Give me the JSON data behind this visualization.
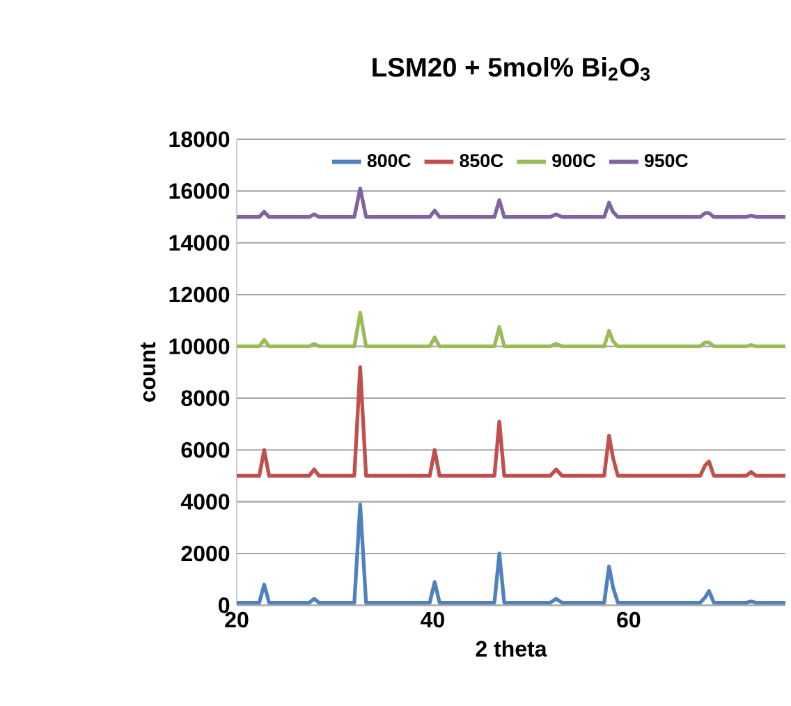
{
  "chart_data": {
    "type": "line",
    "title": "LSM20 + 5mol% Bi$_{2}$O$_{3}$",
    "xlabel": "2 theta",
    "ylabel": "count",
    "x": [
      20,
      22.3,
      22.8,
      23.3,
      27.4,
      27.9,
      28.4,
      32.0,
      32.6,
      33.2,
      39.7,
      40.2,
      40.7,
      46.3,
      46.8,
      47.3,
      52.0,
      52.6,
      53.2,
      57.5,
      58.0,
      58.4,
      58.9,
      67.3,
      67.8,
      68.2,
      68.7,
      72.0,
      72.5,
      73.0,
      76
    ],
    "series": [
      {
        "name": "800C",
        "color": "#4f81bd",
        "values": [
          100,
          100,
          800,
          100,
          100,
          250,
          100,
          100,
          3900,
          100,
          100,
          900,
          100,
          100,
          2000,
          100,
          100,
          250,
          100,
          100,
          1500,
          700,
          100,
          100,
          300,
          550,
          100,
          100,
          150,
          100,
          100
        ]
      },
      {
        "name": "850C",
        "color": "#c0504d",
        "values": [
          5000,
          5000,
          6000,
          5000,
          5000,
          5250,
          5000,
          5000,
          9200,
          5000,
          5000,
          6000,
          5000,
          5000,
          7100,
          5000,
          5000,
          5250,
          5000,
          5000,
          6550,
          5700,
          5000,
          5000,
          5400,
          5550,
          5000,
          5000,
          5150,
          5000,
          5000
        ]
      },
      {
        "name": "900C",
        "color": "#9bbb59",
        "values": [
          10000,
          10000,
          10250,
          10000,
          10000,
          10100,
          10000,
          10000,
          11300,
          10000,
          10000,
          10350,
          10000,
          10000,
          10750,
          10000,
          10000,
          10100,
          10000,
          10000,
          10600,
          10200,
          10000,
          10000,
          10150,
          10150,
          10000,
          10000,
          10050,
          10000,
          10000
        ]
      },
      {
        "name": "950C",
        "color": "#8064a2",
        "values": [
          15000,
          15000,
          15200,
          15000,
          15000,
          15100,
          15000,
          15000,
          16100,
          15000,
          15000,
          15250,
          15000,
          15000,
          15650,
          15000,
          15000,
          15100,
          15000,
          15000,
          15550,
          15200,
          15000,
          15000,
          15150,
          15150,
          15000,
          15000,
          15050,
          15000,
          15000
        ]
      }
    ],
    "xlim": [
      20,
      76
    ],
    "xticks": [
      20,
      40,
      60
    ],
    "ylim": [
      0,
      18000
    ],
    "yticks": [
      0,
      2000,
      4000,
      6000,
      8000,
      10000,
      12000,
      14000,
      16000,
      18000
    ],
    "grid": "y",
    "legend": "top",
    "marker": "none",
    "line_style": "solid"
  }
}
